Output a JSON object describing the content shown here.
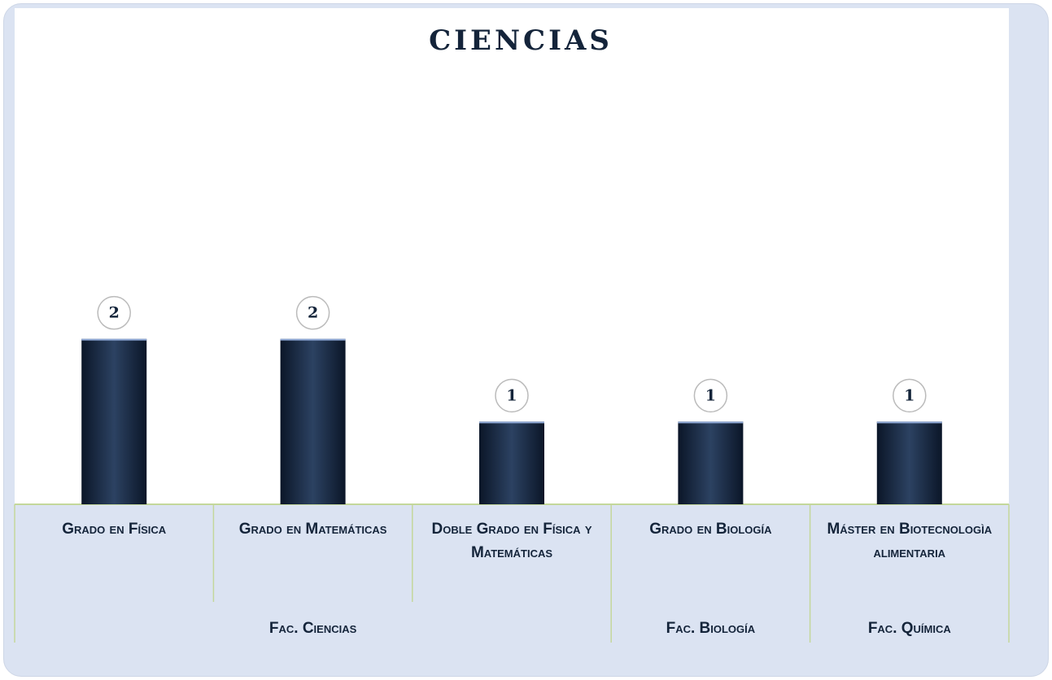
{
  "chart_data": {
    "type": "bar",
    "title": "CIENCIAS",
    "categories": [
      "Grado en Física",
      "Grado en Matemáticas",
      "Doble Grado en Física y Matemáticas",
      "Grado en Biología",
      "Máster en Biotecnologìa alimentaria"
    ],
    "category_groups": [
      "Fac. Ciencias",
      "Fac. Ciencias",
      "Fac. Ciencias",
      "Fac. Biología",
      "Fac. Química"
    ],
    "values": [
      2,
      2,
      1,
      1,
      1
    ],
    "color": "#10203a",
    "ylim": [
      0,
      6
    ]
  }
}
